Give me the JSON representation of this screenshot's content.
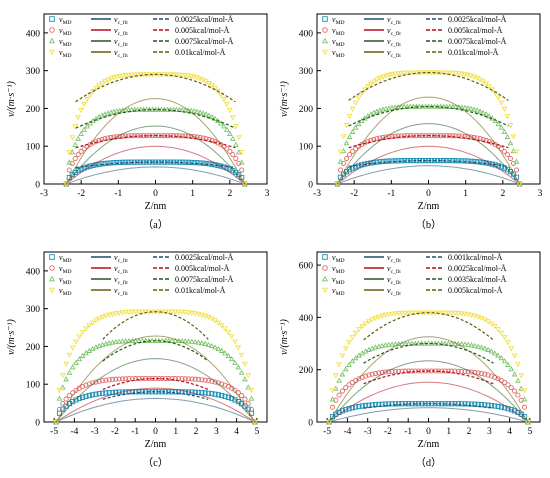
{
  "figure": {
    "legend_rows": [
      {
        "md": "v",
        "md_sub": "MD"
      },
      {
        "md": "v",
        "md_sub": "MD"
      },
      {
        "md": "v",
        "md_sub": "MD"
      },
      {
        "md": "v",
        "md_sub": "MD"
      }
    ],
    "fit_labels": {
      "c": "v",
      "c_sub": "c_fit",
      "w": "v",
      "w_sub": "w_fit"
    }
  },
  "chart_data": [
    {
      "type": "scatter",
      "panel_label": "（a）",
      "xlabel": "Z/nm",
      "ylabel": "v/(m·s⁻¹)",
      "xlim": [
        -3,
        3
      ],
      "ylim": [
        0,
        450
      ],
      "xticks": [
        -3,
        -2,
        -1,
        0,
        1,
        2,
        3
      ],
      "yticks": [
        0,
        100,
        200,
        300,
        400
      ],
      "legend_position": "top",
      "z_edge": 2.4,
      "curve_half_width": 2.15,
      "series": [
        {
          "name": "0.0025kcal/mol-Å",
          "peak": 58,
          "color": "#1b8fb8",
          "marker": "square",
          "line_color": "#1f4e6b"
        },
        {
          "name": "0.005kcal/mol-Å",
          "peak": 128,
          "color": "#e06b6b",
          "marker": "circle",
          "line_color": "#b30f1e"
        },
        {
          "name": "0.0075kcal/mol-Å",
          "peak": 197,
          "color": "#7cc36a",
          "marker": "triangle",
          "line_color": "#1e5a1e"
        },
        {
          "name": "0.01kcal/mol-Å",
          "peak": 290,
          "color": "#f0e04a",
          "marker": "triangle-down",
          "line_color": "#6b5a08"
        }
      ]
    },
    {
      "type": "scatter",
      "panel_label": "（b）",
      "xlabel": "Z/nm",
      "ylabel": "v/(m·s⁻¹)",
      "xlim": [
        -3,
        3
      ],
      "ylim": [
        0,
        450
      ],
      "xticks": [
        -3,
        -2,
        -1,
        0,
        1,
        2,
        3
      ],
      "yticks": [
        0,
        100,
        200,
        300,
        400
      ],
      "legend_position": "top",
      "z_edge": 2.45,
      "curve_half_width": 2.15,
      "series": [
        {
          "name": "0.0025kcal/mol-Å",
          "peak": 62,
          "color": "#1b8fb8",
          "marker": "square",
          "line_color": "#1f4e6b"
        },
        {
          "name": "0.005kcal/mol-Å",
          "peak": 128,
          "color": "#e06b6b",
          "marker": "circle",
          "line_color": "#b30f1e"
        },
        {
          "name": "0.0075kcal/mol-Å",
          "peak": 205,
          "color": "#7cc36a",
          "marker": "triangle",
          "line_color": "#1e5a1e"
        },
        {
          "name": "0.01kcal/mol-Å",
          "peak": 295,
          "color": "#f0e04a",
          "marker": "triangle-down",
          "line_color": "#6b5a08"
        }
      ]
    },
    {
      "type": "scatter",
      "panel_label": "（c）",
      "xlabel": "Z/nm",
      "ylabel": "v/(m·s⁻¹)",
      "xlim": [
        -5.5,
        5.5
      ],
      "ylim": [
        0,
        450
      ],
      "xticks": [
        -5,
        -4,
        -3,
        -2,
        -1,
        0,
        1,
        2,
        3,
        4,
        5
      ],
      "yticks": [
        0,
        100,
        200,
        300,
        400
      ],
      "legend_position": "top",
      "z_edge": 4.9,
      "curve_half_width": 2.6,
      "series": [
        {
          "name": "0.0025kcal/mol-Å",
          "peak": 80,
          "color": "#1b8fb8",
          "marker": "square",
          "line_color": "#1f4e6b"
        },
        {
          "name": "0.005kcal/mol-Å",
          "peak": 115,
          "color": "#e06b6b",
          "marker": "circle",
          "line_color": "#b30f1e"
        },
        {
          "name": "0.0075kcal/mol-Å",
          "peak": 215,
          "color": "#7cc36a",
          "marker": "triangle",
          "line_color": "#1e5a1e"
        },
        {
          "name": "0.01kcal/mol-Å",
          "peak": 292,
          "color": "#f0e04a",
          "marker": "triangle-down",
          "line_color": "#6b5a08"
        }
      ]
    },
    {
      "type": "scatter",
      "panel_label": "（d）",
      "xlabel": "Z/nm",
      "ylabel": "v/(m·s⁻¹)",
      "xlim": [
        -5.5,
        5.5
      ],
      "ylim": [
        0,
        650
      ],
      "xticks": [
        -5,
        -4,
        -3,
        -2,
        -1,
        0,
        1,
        2,
        3,
        4,
        5
      ],
      "yticks": [
        0,
        200,
        400,
        600
      ],
      "legend_position": "top",
      "z_edge": 4.9,
      "curve_half_width": 3.2,
      "series": [
        {
          "name": "0.001kcal/mol-Å",
          "peak": 70,
          "color": "#1b8fb8",
          "marker": "square",
          "line_color": "#1f4e6b"
        },
        {
          "name": "0.0025kcal/mol-Å",
          "peak": 195,
          "color": "#e06b6b",
          "marker": "circle",
          "line_color": "#b30f1e"
        },
        {
          "name": "0.0035kcal/mol-Å",
          "peak": 300,
          "color": "#7cc36a",
          "marker": "triangle",
          "line_color": "#1e5a1e"
        },
        {
          "name": "0.005kcal/mol-Å",
          "peak": 418,
          "color": "#f0e04a",
          "marker": "triangle-down",
          "line_color": "#6b5a08"
        }
      ]
    }
  ]
}
